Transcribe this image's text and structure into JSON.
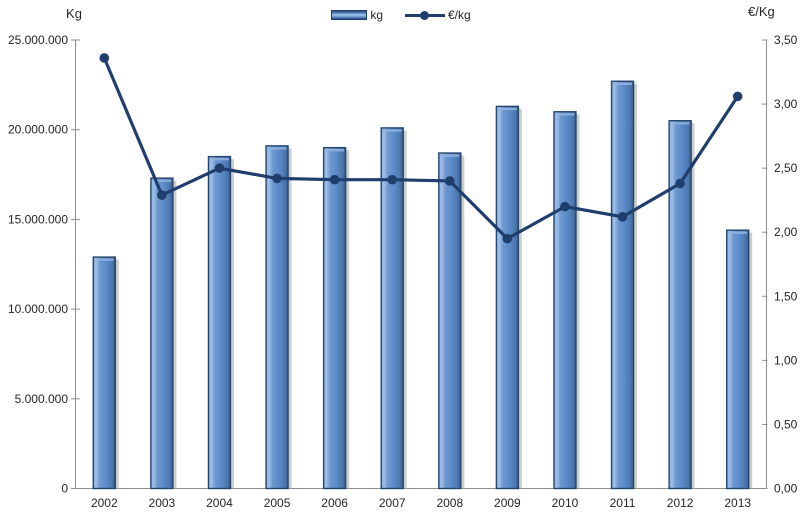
{
  "header": {
    "left_axis_title": "Kg",
    "right_axis_title": "€/Kg"
  },
  "legend": [
    {
      "label": "kg",
      "swatch": "bar-swatch-icon",
      "color": "#5B8AC8"
    },
    {
      "label": "€/kg",
      "swatch": "line-swatch-icon",
      "color": "#1F3E6D"
    }
  ],
  "chart_data": {
    "type": "bar",
    "subtype": "bar+line combo",
    "categories": [
      "2002",
      "2003",
      "2004",
      "2005",
      "2006",
      "2007",
      "2008",
      "2009",
      "2010",
      "2011",
      "2012",
      "2013"
    ],
    "series": [
      {
        "name": "kg",
        "type": "bar",
        "axis": "left",
        "values": [
          12900000,
          17300000,
          18500000,
          19100000,
          19000000,
          20100000,
          18700000,
          21300000,
          21000000,
          22700000,
          20500000,
          14400000
        ]
      },
      {
        "name": "€/kg",
        "type": "line",
        "axis": "right",
        "values": [
          3.36,
          2.29,
          2.5,
          2.42,
          2.41,
          2.41,
          2.4,
          1.95,
          2.2,
          2.12,
          2.38,
          3.06
        ]
      }
    ],
    "left_axis": {
      "title": "Kg",
      "min": 0,
      "max": 25000000,
      "tick_interval": 5000000,
      "tick_labels_top_to_bottom": [
        "25.000.000",
        "20.000.000",
        "15.000.000",
        "10.000.000",
        "5.000.000",
        "0"
      ]
    },
    "right_axis": {
      "title": "€/Kg",
      "min": 0,
      "max": 3.5,
      "tick_interval": 0.5,
      "tick_labels_top_to_bottom": [
        "3,50",
        "3,00",
        "2,50",
        "2,00",
        "1,50",
        "1,00",
        "0,50",
        "0,00"
      ]
    },
    "grid": false,
    "legend_position": "top-center",
    "colors": {
      "bar_fill_mid": "#5B8AC8",
      "bar_fill_light": "#8FB3E2",
      "bar_fill_dark": "#3A5E8C",
      "bar_border": "#24466B",
      "bar_shadow": "#9E9E9E",
      "line": "#1F3E6D",
      "axis_line": "#8E8E8E",
      "text": "#262626"
    }
  }
}
